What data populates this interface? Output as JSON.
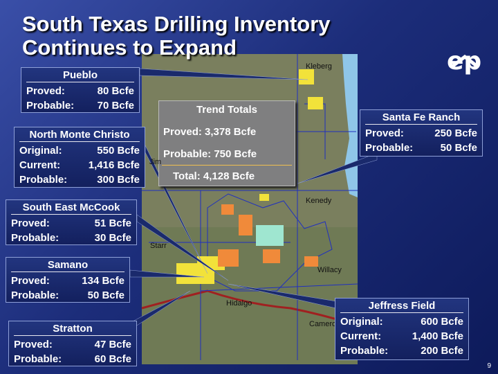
{
  "title": [
    "South Texas Drilling Inventory",
    "Continues to Expand"
  ],
  "logo": "ep",
  "page_number": "9",
  "map_labels": [
    "Kleberg",
    "Jim",
    "Kenedy",
    "Starr",
    "Willacy",
    "Hidalgo",
    "Cameron"
  ],
  "trend_totals": {
    "title": "Trend Totals",
    "lines": [
      "Proved: 3,378 Bcfe",
      "Probable: 750 Bcfe",
      "Total:  4,128 Bcfe"
    ]
  },
  "callouts": [
    {
      "title": "Pueblo",
      "rows": [
        [
          "Proved:",
          "80 Bcfe"
        ],
        [
          "Probable:",
          "70 Bcfe"
        ]
      ]
    },
    {
      "title": "North Monte Christo",
      "rows": [
        [
          "Original:",
          "550 Bcfe"
        ],
        [
          "Current:",
          "1,416 Bcfe"
        ],
        [
          "Probable:",
          "300 Bcfe"
        ]
      ]
    },
    {
      "title": "South East McCook",
      "rows": [
        [
          "Proved:",
          "51 Bcfe"
        ],
        [
          "Probable:",
          "30 Bcfe"
        ]
      ]
    },
    {
      "title": "Samano",
      "rows": [
        [
          "Proved:",
          "134 Bcfe"
        ],
        [
          "Probable:",
          "50 Bcfe"
        ]
      ]
    },
    {
      "title": "Stratton",
      "rows": [
        [
          "Proved:",
          "47 Bcfe"
        ],
        [
          "Probable:",
          "60 Bcfe"
        ]
      ]
    },
    {
      "title": "Santa Fe Ranch",
      "rows": [
        [
          "Proved:",
          "250 Bcfe"
        ],
        [
          "Probable:",
          "50 Bcfe"
        ]
      ]
    },
    {
      "title": "Jeffress Field",
      "rows": [
        [
          "Original:",
          "600 Bcfe"
        ],
        [
          "Current:",
          "1,400 Bcfe"
        ],
        [
          "Probable:",
          "200 Bcfe"
        ]
      ]
    }
  ]
}
